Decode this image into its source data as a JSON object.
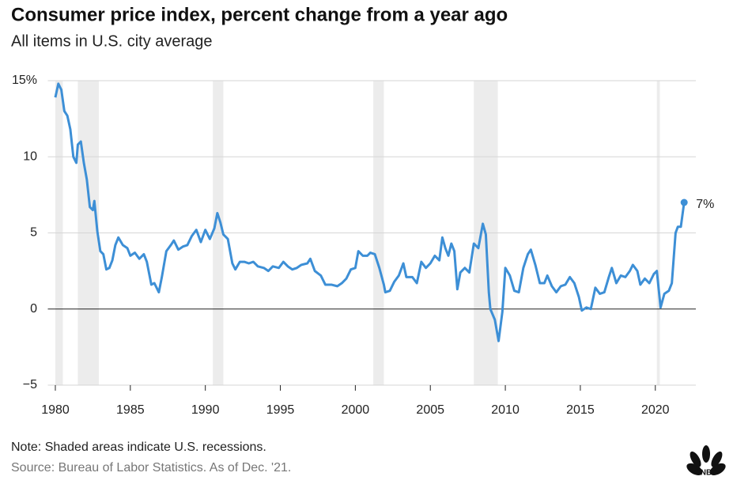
{
  "chart_data": {
    "type": "line",
    "title": "Consumer price index, percent change from a year ago",
    "subtitle": "All items in U.S. city average",
    "note": "Note: Shaded areas indicate U.S. recessions.",
    "source": "Source: Bureau of Labor Statistics. As of Dec. '21.",
    "logo_text": "CNBC",
    "x": [
      1980.0,
      1980.2,
      1980.4,
      1980.6,
      1980.8,
      1981.0,
      1981.2,
      1981.4,
      1981.5,
      1981.7,
      1981.9,
      1982.1,
      1982.3,
      1982.5,
      1982.6,
      1982.8,
      1983.0,
      1983.2,
      1983.4,
      1983.6,
      1983.8,
      1984.0,
      1984.2,
      1984.5,
      1984.8,
      1985.0,
      1985.3,
      1985.6,
      1985.9,
      1986.1,
      1986.4,
      1986.6,
      1986.9,
      1987.1,
      1987.4,
      1987.7,
      1987.9,
      1988.2,
      1988.5,
      1988.8,
      1989.1,
      1989.4,
      1989.7,
      1990.0,
      1990.3,
      1990.6,
      1990.8,
      1991.0,
      1991.2,
      1991.5,
      1991.8,
      1992.0,
      1992.3,
      1992.6,
      1992.9,
      1993.2,
      1993.5,
      1993.9,
      1994.2,
      1994.5,
      1994.9,
      1995.2,
      1995.5,
      1995.8,
      1996.1,
      1996.4,
      1996.8,
      1997.0,
      1997.3,
      1997.7,
      1998.0,
      1998.4,
      1998.8,
      1999.1,
      1999.4,
      1999.7,
      2000.0,
      2000.2,
      2000.5,
      2000.8,
      2001.0,
      2001.3,
      2001.6,
      2001.9,
      2002.0,
      2002.3,
      2002.6,
      2002.9,
      2003.2,
      2003.4,
      2003.8,
      2004.1,
      2004.4,
      2004.7,
      2005.0,
      2005.3,
      2005.6,
      2005.8,
      2006.0,
      2006.2,
      2006.4,
      2006.6,
      2006.8,
      2007.0,
      2007.3,
      2007.6,
      2007.9,
      2008.2,
      2008.5,
      2008.7,
      2008.9,
      2009.0,
      2009.3,
      2009.55,
      2009.8,
      2010.0,
      2010.3,
      2010.6,
      2010.9,
      2011.2,
      2011.5,
      2011.7,
      2012.0,
      2012.3,
      2012.6,
      2012.8,
      2013.1,
      2013.4,
      2013.7,
      2014.0,
      2014.3,
      2014.6,
      2014.9,
      2015.1,
      2015.4,
      2015.7,
      2016.0,
      2016.3,
      2016.6,
      2016.9,
      2017.1,
      2017.4,
      2017.7,
      2018.0,
      2018.3,
      2018.5,
      2018.8,
      2019.0,
      2019.3,
      2019.6,
      2019.9,
      2020.1,
      2020.35,
      2020.6,
      2020.9,
      2021.1,
      2021.35,
      2021.5,
      2021.7,
      2021.92
    ],
    "series": [
      {
        "name": "CPI",
        "color": "#3d8fd6",
        "values": [
          13.9,
          14.8,
          14.4,
          13.0,
          12.7,
          11.8,
          10.0,
          9.6,
          10.8,
          11.0,
          9.6,
          8.5,
          6.7,
          6.5,
          7.1,
          5.1,
          3.8,
          3.6,
          2.6,
          2.7,
          3.2,
          4.2,
          4.7,
          4.2,
          4.0,
          3.5,
          3.7,
          3.3,
          3.6,
          3.1,
          1.6,
          1.7,
          1.1,
          2.1,
          3.8,
          4.2,
          4.5,
          3.9,
          4.1,
          4.2,
          4.8,
          5.2,
          4.4,
          5.2,
          4.6,
          5.3,
          6.3,
          5.7,
          4.9,
          4.6,
          3.0,
          2.6,
          3.1,
          3.1,
          3.0,
          3.1,
          2.8,
          2.7,
          2.5,
          2.8,
          2.7,
          3.1,
          2.8,
          2.6,
          2.7,
          2.9,
          3.0,
          3.3,
          2.5,
          2.2,
          1.6,
          1.6,
          1.5,
          1.7,
          2.0,
          2.6,
          2.7,
          3.8,
          3.5,
          3.5,
          3.7,
          3.6,
          2.7,
          1.6,
          1.1,
          1.2,
          1.8,
          2.2,
          3.0,
          2.1,
          2.1,
          1.7,
          3.1,
          2.7,
          3.0,
          3.5,
          3.2,
          4.7,
          4.0,
          3.5,
          4.3,
          3.8,
          1.3,
          2.4,
          2.7,
          2.4,
          4.3,
          4.0,
          5.6,
          4.9,
          1.1,
          0.0,
          -0.7,
          -2.1,
          -0.2,
          2.7,
          2.2,
          1.2,
          1.1,
          2.7,
          3.6,
          3.9,
          2.9,
          1.7,
          1.7,
          2.2,
          1.5,
          1.1,
          1.5,
          1.6,
          2.1,
          1.7,
          0.8,
          -0.1,
          0.1,
          0.0,
          1.4,
          1.0,
          1.1,
          2.1,
          2.7,
          1.7,
          2.2,
          2.1,
          2.5,
          2.9,
          2.5,
          1.6,
          2.0,
          1.7,
          2.3,
          2.5,
          0.1,
          1.0,
          1.2,
          1.7,
          5.0,
          5.4,
          5.4,
          7.0
        ]
      }
    ],
    "annotations": [
      {
        "x": 2021.92,
        "value": 7.0,
        "label": "7%"
      }
    ],
    "recessions": [
      [
        1980.0,
        1980.5
      ],
      [
        1981.5,
        1982.9
      ],
      [
        1990.5,
        1991.2
      ],
      [
        2001.2,
        2001.9
      ],
      [
        2007.9,
        2009.5
      ],
      [
        2020.1,
        2020.3
      ]
    ],
    "recession_color": "#ececec",
    "xlim": [
      1979.5,
      2022.7
    ],
    "xticks": [
      1980,
      1985,
      1990,
      1995,
      2000,
      2005,
      2010,
      2015,
      2020
    ],
    "ylim": [
      -5,
      15
    ],
    "yticks": [
      {
        "value": 15,
        "label": "15%"
      },
      10,
      5,
      0,
      {
        "value": -5,
        "label": "−5"
      }
    ],
    "grid": true
  }
}
